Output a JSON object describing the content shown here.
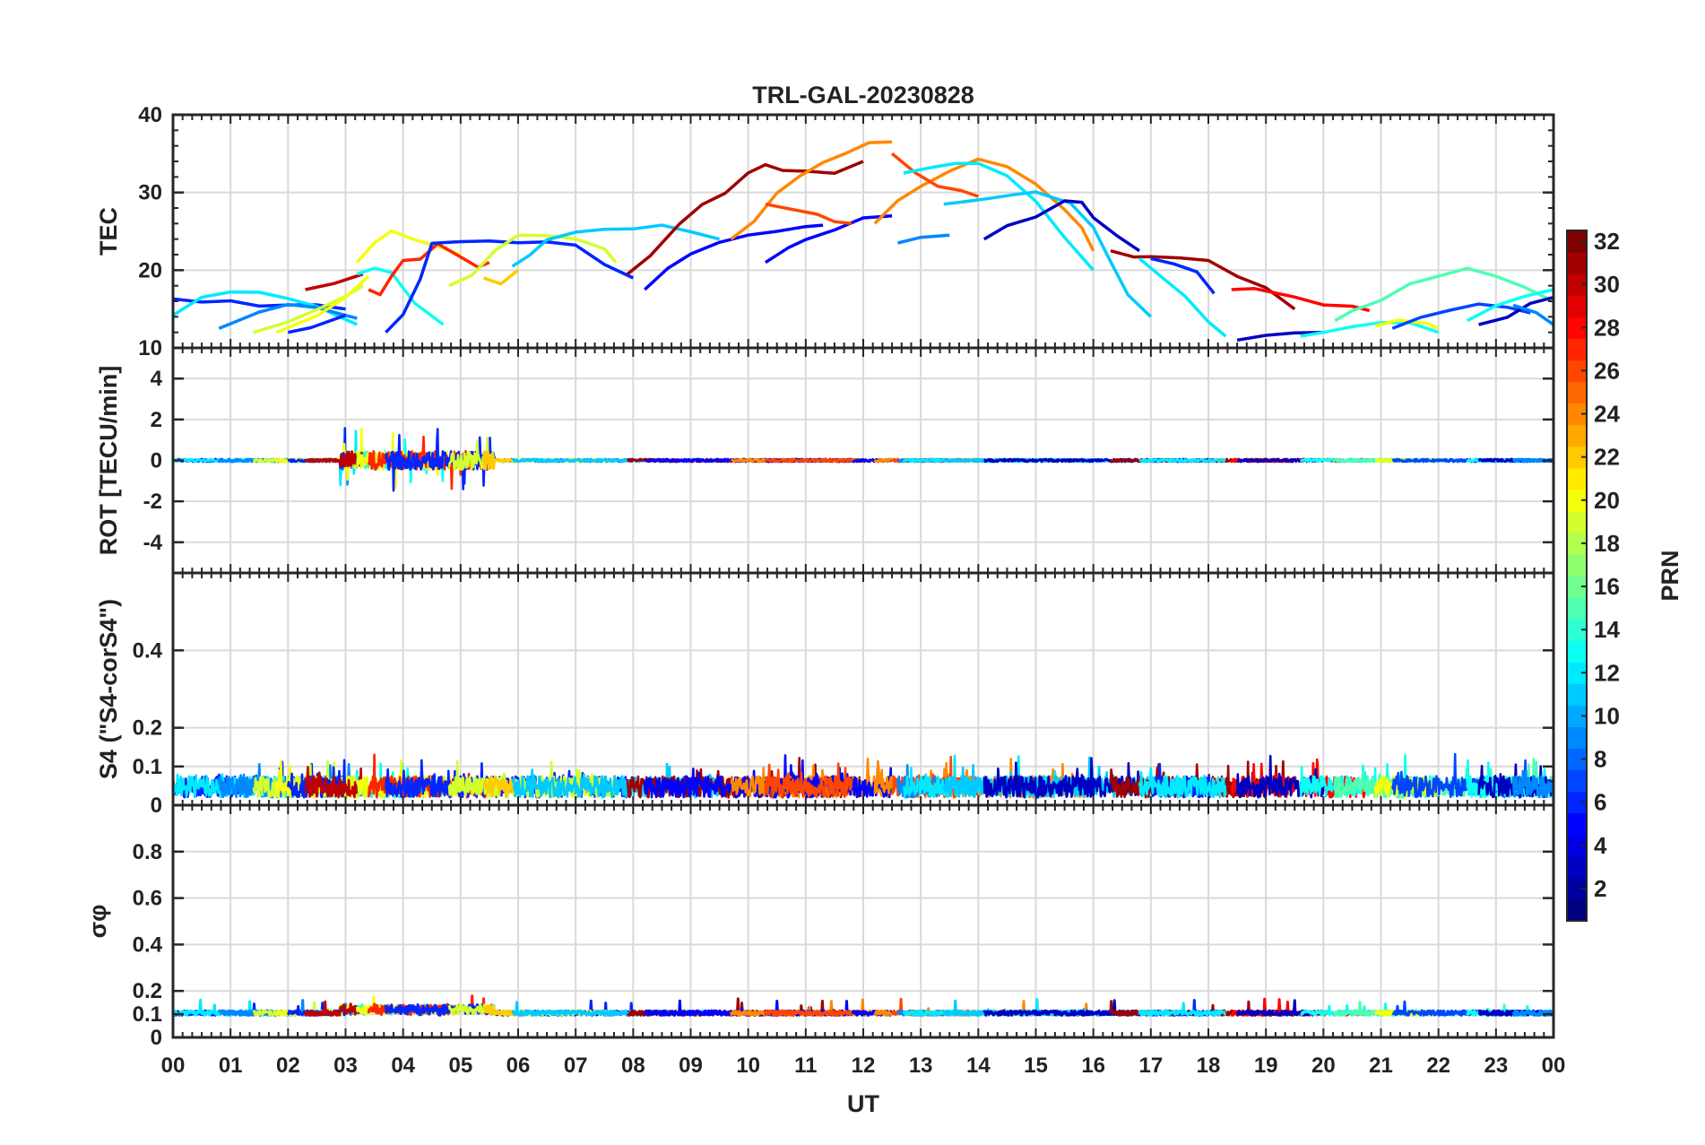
{
  "chart_data": {
    "type": "line",
    "title": "TRL-GAL-20230828",
    "xlabel": "UT",
    "x_tick_labels": [
      "00",
      "01",
      "02",
      "03",
      "04",
      "05",
      "06",
      "07",
      "08",
      "09",
      "10",
      "11",
      "12",
      "13",
      "14",
      "15",
      "16",
      "17",
      "18",
      "19",
      "20",
      "21",
      "22",
      "23",
      "00"
    ],
    "xlim": [
      0,
      24
    ],
    "grid": true,
    "colorbar": {
      "label": "PRN",
      "range": [
        1,
        32
      ],
      "tick_labels": [
        "2",
        "4",
        "6",
        "8",
        "10",
        "12",
        "14",
        "16",
        "18",
        "20",
        "22",
        "24",
        "26",
        "28",
        "30",
        "32"
      ],
      "tick_values": [
        2,
        4,
        6,
        8,
        10,
        12,
        14,
        16,
        18,
        20,
        22,
        24,
        26,
        28,
        30,
        32
      ],
      "colormap": "jet",
      "placement": "right"
    },
    "panels": [
      {
        "id": "tec",
        "ylabel": "TEC",
        "ylim": [
          10,
          40
        ],
        "y_ticks": [
          10,
          20,
          30,
          40
        ],
        "y_tick_labels": [
          "10",
          "20",
          "30",
          "40"
        ],
        "series": [
          {
            "prn": 6,
            "x": [
              0,
              0.5,
              1,
              1.5,
              2,
              2.5,
              3
            ],
            "y": [
              16.3,
              16.2,
              15.8,
              15.5,
              15.7,
              15.4,
              15.0
            ]
          },
          {
            "prn": 12,
            "x": [
              0,
              0.5,
              1,
              1.5,
              2,
              2.5,
              3.2
            ],
            "y": [
              14.2,
              16.5,
              17.3,
              17.0,
              16.2,
              15.3,
              13.0
            ]
          },
          {
            "prn": 9,
            "x": [
              0.8,
              1.5,
              2,
              2.5,
              3.2
            ],
            "y": [
              12.5,
              14.5,
              15.5,
              15.0,
              13.8
            ]
          },
          {
            "prn": 19,
            "x": [
              1.4,
              2,
              2.5,
              3,
              3.3
            ],
            "y": [
              12.0,
              13.5,
              15.0,
              16.5,
              18.0
            ]
          },
          {
            "prn": 20,
            "x": [
              1.8,
              2.5,
              3,
              3.4
            ],
            "y": [
              12.0,
              14.0,
              16.8,
              19.2
            ]
          },
          {
            "prn": 6,
            "x": [
              2,
              2.4,
              3
            ],
            "y": [
              12.0,
              12.5,
              14.2
            ]
          },
          {
            "prn": 30,
            "x": [
              2.3,
              2.8,
              3.3
            ],
            "y": [
              17.5,
              18.3,
              19.5
            ]
          },
          {
            "prn": 13,
            "x": [
              3.2,
              3.5,
              3.8,
              4.2,
              4.7
            ],
            "y": [
              19.5,
              20.0,
              19.5,
              16.0,
              13.0
            ]
          },
          {
            "prn": 20,
            "x": [
              3.2,
              3.5,
              3.8,
              4.2,
              4.6,
              5.0
            ],
            "y": [
              21.0,
              23.5,
              24.8,
              23.8,
              23.0,
              22.0
            ]
          },
          {
            "prn": 27,
            "x": [
              3.4,
              3.6,
              3.8,
              4.0,
              4.3,
              4.6,
              5.0,
              5.3,
              5.5
            ],
            "y": [
              17.5,
              16.8,
              19.0,
              21.0,
              21.5,
              23.5,
              21.5,
              20.5,
              21.0
            ]
          },
          {
            "prn": 6,
            "x": [
              3.7,
              4.0,
              4.3,
              4.5,
              5.0,
              5.5,
              6.0,
              6.5,
              7.0,
              7.5,
              8.0
            ],
            "y": [
              12.0,
              14.5,
              19.0,
              23.5,
              23.8,
              23.5,
              23.5,
              23.5,
              23.0,
              21.0,
              19.0
            ]
          },
          {
            "prn": 19,
            "x": [
              4.8,
              5.2,
              5.6,
              6.0,
              6.5,
              7.0,
              7.5,
              7.7
            ],
            "y": [
              18.0,
              19.5,
              22.5,
              24.5,
              24.5,
              24.2,
              22.5,
              21.0
            ]
          },
          {
            "prn": 22,
            "x": [
              5.4,
              5.7,
              6.0
            ],
            "y": [
              19.0,
              18.5,
              20.0
            ]
          },
          {
            "prn": 11,
            "x": [
              5.9,
              6.2,
              6.5,
              7.0,
              7.5,
              8.0,
              8.5,
              9.0,
              9.5
            ],
            "y": [
              20.5,
              22.0,
              24.0,
              24.8,
              25.0,
              25.3,
              26.0,
              25.0,
              24.0
            ]
          },
          {
            "prn": 31,
            "x": [
              7.9,
              8.3,
              8.8,
              9.2,
              9.6,
              10.0,
              10.3,
              10.6,
              11.0,
              11.5,
              12.0
            ],
            "y": [
              19.5,
              22.0,
              26.0,
              28.5,
              30.0,
              32.5,
              33.5,
              33.0,
              32.5,
              32.5,
              34.0
            ]
          },
          {
            "prn": 5,
            "x": [
              8.2,
              8.6,
              9.0,
              9.5,
              10.0,
              10.5,
              11.0,
              11.3
            ],
            "y": [
              17.5,
              20.0,
              22.0,
              23.5,
              24.5,
              25.0,
              25.5,
              25.8
            ]
          },
          {
            "prn": 24,
            "x": [
              9.7,
              10.1,
              10.5,
              10.9,
              11.3,
              11.7,
              12.1,
              12.5
            ],
            "y": [
              24.0,
              26.0,
              30.0,
              32.0,
              34.0,
              35.0,
              36.5,
              36.5
            ]
          },
          {
            "prn": 5,
            "x": [
              10.3,
              10.7,
              11.0,
              11.5,
              12.0,
              12.5
            ],
            "y": [
              21.0,
              23.0,
              24.0,
              25.0,
              26.5,
              27.0
            ]
          },
          {
            "prn": 26,
            "x": [
              10.3,
              10.8,
              11.2,
              11.5,
              11.8
            ],
            "y": [
              28.5,
              28.0,
              27.0,
              26.5,
              26.0
            ]
          },
          {
            "prn": 24,
            "x": [
              12.2,
              12.6,
              13.0,
              13.5,
              14.0,
              14.5,
              15.0,
              15.5,
              15.8,
              16.0
            ],
            "y": [
              26.0,
              29.0,
              31.0,
              33.0,
              34.0,
              33.5,
              31.0,
              28.0,
              25.5,
              22.5
            ]
          },
          {
            "prn": 26,
            "x": [
              12.5,
              12.9,
              13.3,
              13.7,
              14.0
            ],
            "y": [
              35.0,
              32.5,
              31.0,
              30.0,
              29.5
            ]
          },
          {
            "prn": 9,
            "x": [
              12.6,
              13.0,
              13.5
            ],
            "y": [
              23.5,
              24.0,
              24.5
            ]
          },
          {
            "prn": 12,
            "x": [
              12.7,
              13.2,
              13.6,
              14.0,
              14.5,
              15.0,
              15.5,
              16.0
            ],
            "y": [
              32.5,
              33.0,
              33.5,
              33.5,
              32.0,
              29.0,
              24.5,
              20.0
            ]
          },
          {
            "prn": 11,
            "x": [
              13.4,
              13.8,
              14.2,
              14.6,
              15.0,
              15.3,
              15.6,
              16.0,
              16.3,
              16.6,
              17.0
            ],
            "y": [
              28.5,
              29.0,
              29.5,
              30.0,
              30.0,
              29.5,
              28.5,
              25.5,
              21.0,
              17.0,
              14.0
            ]
          },
          {
            "prn": 3,
            "x": [
              14.1,
              14.5,
              15.0,
              15.5,
              15.8,
              16.0,
              16.4,
              16.8
            ],
            "y": [
              24.0,
              25.5,
              27.0,
              29.0,
              28.5,
              27.0,
              24.5,
              22.5
            ]
          },
          {
            "prn": 31,
            "x": [
              16.3,
              16.7,
              17.0,
              17.5,
              18.0,
              18.5,
              19.0,
              19.5
            ],
            "y": [
              22.5,
              22.0,
              21.5,
              21.5,
              21.0,
              19.5,
              17.5,
              15.0
            ]
          },
          {
            "prn": 6,
            "x": [
              17.0,
              17.4,
              17.8,
              18.1
            ],
            "y": [
              21.5,
              21.0,
              19.5,
              17.0
            ]
          },
          {
            "prn": 12,
            "x": [
              16.8,
              17.2,
              17.6,
              18.0,
              18.3
            ],
            "y": [
              21.5,
              19.0,
              16.5,
              13.5,
              11.5
            ]
          },
          {
            "prn": 28,
            "x": [
              18.4,
              18.8,
              19.0,
              19.5,
              20.0,
              20.5,
              20.8
            ],
            "y": [
              17.5,
              17.8,
              17.5,
              16.5,
              15.8,
              15.2,
              14.8
            ]
          },
          {
            "prn": 3,
            "x": [
              18.5,
              19.0,
              19.5,
              20.0
            ],
            "y": [
              11.0,
              11.5,
              11.8,
              12.0
            ]
          },
          {
            "prn": 13,
            "x": [
              19.6,
              20.0,
              20.5,
              21.0,
              21.5,
              22.0
            ],
            "y": [
              11.5,
              12.0,
              13.0,
              13.5,
              13.0,
              12.0
            ]
          },
          {
            "prn": 15,
            "x": [
              20.2,
              20.5,
              21.0,
              21.5,
              22.0,
              22.5,
              23.0,
              23.5,
              24.0
            ],
            "y": [
              13.5,
              15.0,
              16.0,
              18.0,
              19.5,
              20.0,
              19.0,
              17.5,
              16.0
            ]
          },
          {
            "prn": 20,
            "x": [
              20.9,
              21.3,
              21.8,
              22.0
            ],
            "y": [
              12.8,
              13.3,
              13.0,
              12.5
            ]
          },
          {
            "prn": 7,
            "x": [
              21.2,
              21.7,
              22.2,
              22.7,
              23.2,
              23.6
            ],
            "y": [
              12.5,
              14.0,
              15.0,
              15.5,
              15.0,
              14.5
            ]
          },
          {
            "prn": 13,
            "x": [
              22.5,
              23.0,
              23.5,
              24.0
            ],
            "y": [
              13.5,
              15.5,
              16.8,
              17.5
            ]
          },
          {
            "prn": 3,
            "x": [
              22.7,
              23.2,
              23.6,
              24.0
            ],
            "y": [
              13.0,
              14.0,
              15.5,
              16.5
            ]
          },
          {
            "prn": 9,
            "x": [
              23.3,
              23.7,
              24.0
            ],
            "y": [
              15.5,
              14.5,
              13.0
            ]
          }
        ]
      },
      {
        "id": "rot",
        "ylabel": "ROT [TECU/min]",
        "ylim": [
          -5.5,
          5.5
        ],
        "y_ticks": [
          -4,
          -2,
          0,
          2,
          4
        ],
        "y_tick_labels": [
          "-4",
          "-2",
          "0",
          "2",
          "4"
        ],
        "description_level": 0.05
      },
      {
        "id": "s4",
        "ylabel": "S4 (\"S4-corS4\")",
        "ylim": [
          0,
          0.6
        ],
        "y_ticks": [
          0,
          0.1,
          0.2,
          0.4
        ],
        "y_tick_labels": [
          "0",
          "0.1",
          "0.2",
          "0.4"
        ],
        "description_level": 0.05
      },
      {
        "id": "sigma",
        "ylabel": "σφ",
        "ylim": [
          0,
          1
        ],
        "y_ticks": [
          0,
          0.1,
          0.2,
          0.4,
          0.6,
          0.8
        ],
        "y_tick_labels": [
          "0",
          "0.1",
          "0.2",
          "0.4",
          "0.6",
          "0.8"
        ],
        "description_level": 0.11
      }
    ]
  }
}
